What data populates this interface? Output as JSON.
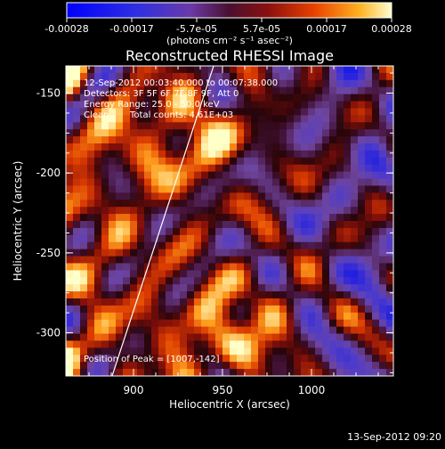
{
  "chart_data": {
    "type": "heatmap",
    "title": "Reconstructed RHESSI Image",
    "xlabel": "Heliocentric X (arcsec)",
    "ylabel": "Heliocentric Y (arcsec)",
    "xlim": [
      862,
      1046
    ],
    "ylim": [
      -327,
      -133
    ],
    "xticks": [
      900,
      950,
      1000
    ],
    "yticks": [
      -150,
      -200,
      -250,
      -300
    ],
    "colorbar": {
      "range": [
        -0.00028,
        0.00028
      ],
      "tick_labels": [
        "-0.00028",
        "-0.00017",
        "-5.7e-05",
        "5.7e-05",
        "0.00017",
        "0.00028"
      ],
      "unit_label": "(photons cm⁻² s⁻¹ asec⁻²)"
    },
    "annotations": {
      "time_range": "12-Sep-2012 00:03:40.000 to 00:07:38.000",
      "detectors": "Detectors: 3F 5F 6F 7F 8F 9F, Att 0",
      "energy": "Energy Range: 25.0 - 50.0 keV",
      "clean": "Clean",
      "counts": "Total counts: 4.61E+03",
      "peak": "Position of Peak = [1007,-142]"
    },
    "limb_line": {
      "x": [
        888,
        945
      ],
      "y": [
        -327,
        -133
      ]
    },
    "peak_position": [
      1007,
      -142
    ]
  },
  "footer_timestamp": "13-Sep-2012 09:20"
}
